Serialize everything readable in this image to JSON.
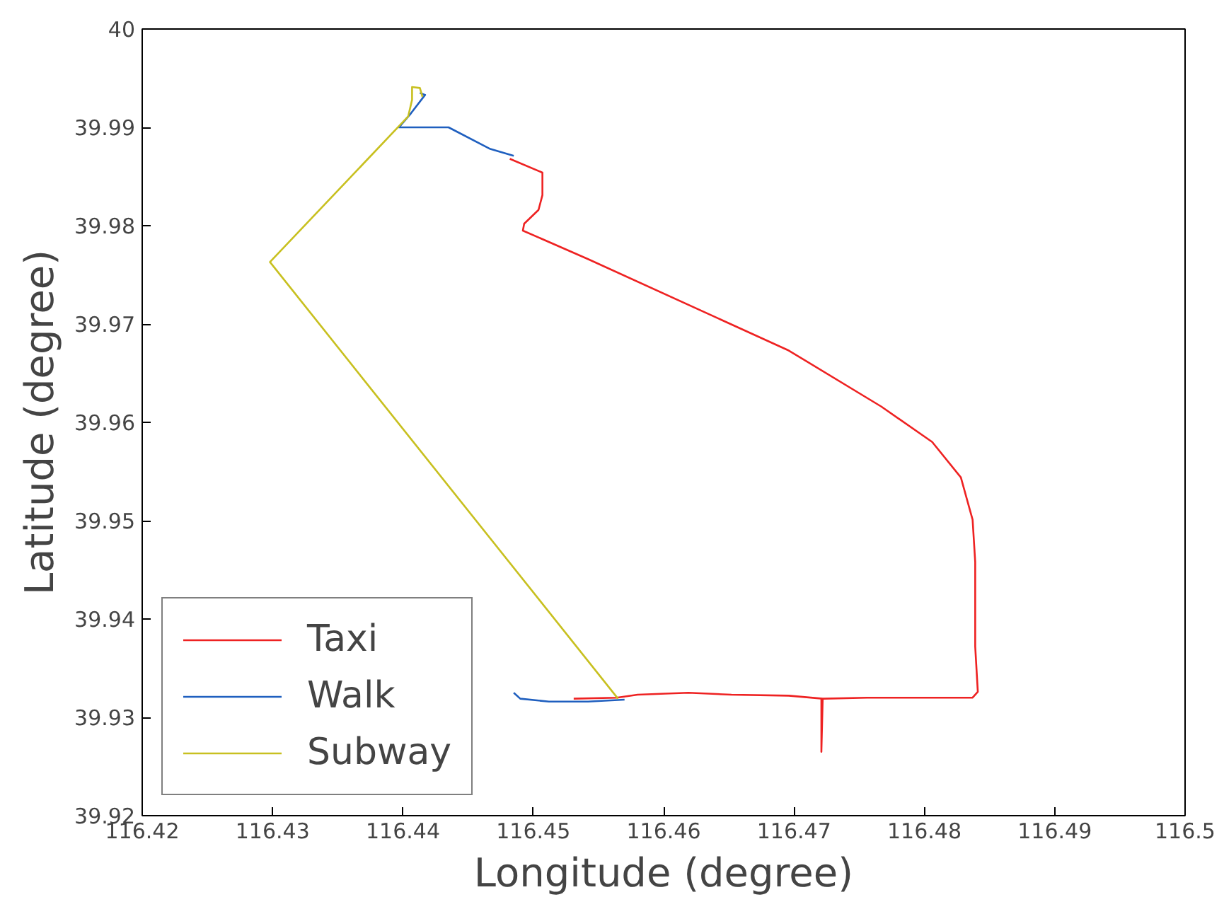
{
  "chart_data": {
    "type": "line",
    "xlabel": "Longitude (degree)",
    "ylabel": "Latitude (degree)",
    "xlim": [
      116.42,
      116.5
    ],
    "ylim": [
      39.92,
      40
    ],
    "xticks": [
      116.42,
      116.43,
      116.44,
      116.45,
      116.46,
      116.47,
      116.48,
      116.49,
      116.5
    ],
    "yticks": [
      39.92,
      39.93,
      39.94,
      39.95,
      39.96,
      39.97,
      39.98,
      39.99,
      40
    ],
    "grid": false,
    "legend": "bottom left",
    "marker": "none",
    "line_style": "solid",
    "series": [
      {
        "name": "Taxi",
        "color": "#ee2222",
        "x": [
          116.4482,
          116.4507,
          116.4507,
          116.4504,
          116.4493,
          116.4492,
          116.4542,
          116.4696,
          116.4767,
          116.4806,
          116.4828,
          116.4837,
          116.4839,
          116.4839,
          116.4841,
          116.4837,
          116.4756,
          116.4723,
          116.4721,
          116.4721,
          116.4722,
          116.4696,
          116.4652,
          116.4619,
          116.458,
          116.4564,
          116.4531
        ],
        "values": [
          39.9868,
          39.9854,
          39.9831,
          39.9816,
          39.9802,
          39.9795,
          39.9766,
          39.9673,
          39.9616,
          39.958,
          39.9544,
          39.9501,
          39.9458,
          39.9372,
          39.9326,
          39.932,
          39.932,
          39.9319,
          39.9319,
          39.9265,
          39.9319,
          39.9322,
          39.9323,
          39.9325,
          39.9323,
          39.932,
          39.9319
        ]
      },
      {
        "name": "Walk",
        "color": "#1f5fbf",
        "x": [
          116.4485,
          116.4467,
          116.4435,
          116.4397,
          116.4406,
          116.4417,
          116.4413,
          null,
          116.4485,
          116.449,
          116.4512,
          116.4542,
          116.457
        ],
        "values": [
          39.9871,
          39.9878,
          39.99,
          39.99,
          39.9914,
          39.9933,
          39.9935,
          null,
          39.9325,
          39.9319,
          39.9316,
          39.9316,
          39.9318
        ]
      },
      {
        "name": "Subway",
        "color": "#c8c020",
        "x": [
          116.4565,
          116.4298,
          116.4404,
          116.4407,
          116.4407,
          116.4413,
          116.4415
        ],
        "values": [
          39.9319,
          39.9763,
          39.9911,
          39.9928,
          39.9941,
          39.994,
          39.9931
        ]
      }
    ]
  }
}
